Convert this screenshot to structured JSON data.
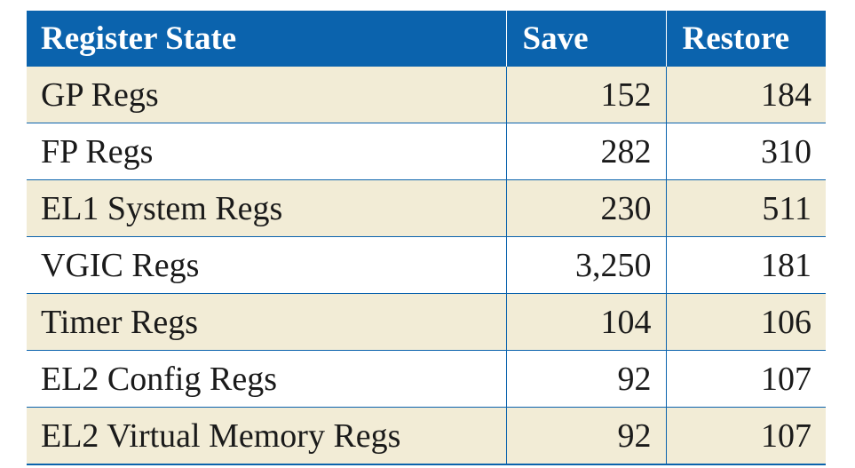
{
  "chart_data": {
    "type": "table",
    "columns": [
      "Register State",
      "Save",
      "Restore"
    ],
    "rows": [
      {
        "label": "GP Regs",
        "save": "152",
        "restore": "184"
      },
      {
        "label": "FP Regs",
        "save": "282",
        "restore": "310"
      },
      {
        "label": "EL1 System Regs",
        "save": "230",
        "restore": "511"
      },
      {
        "label": "VGIC Regs",
        "save": "3,250",
        "restore": "181"
      },
      {
        "label": "Timer Regs",
        "save": "104",
        "restore": "106"
      },
      {
        "label": "EL2 Config Regs",
        "save": "92",
        "restore": "107"
      },
      {
        "label": "EL2 Virtual Memory Regs",
        "save": "92",
        "restore": "107"
      }
    ]
  },
  "colors": {
    "header_bg": "#0b63ad",
    "header_text": "#ffffff",
    "shaded_row": "#f2ecd6",
    "plain_row": "#ffffff"
  }
}
